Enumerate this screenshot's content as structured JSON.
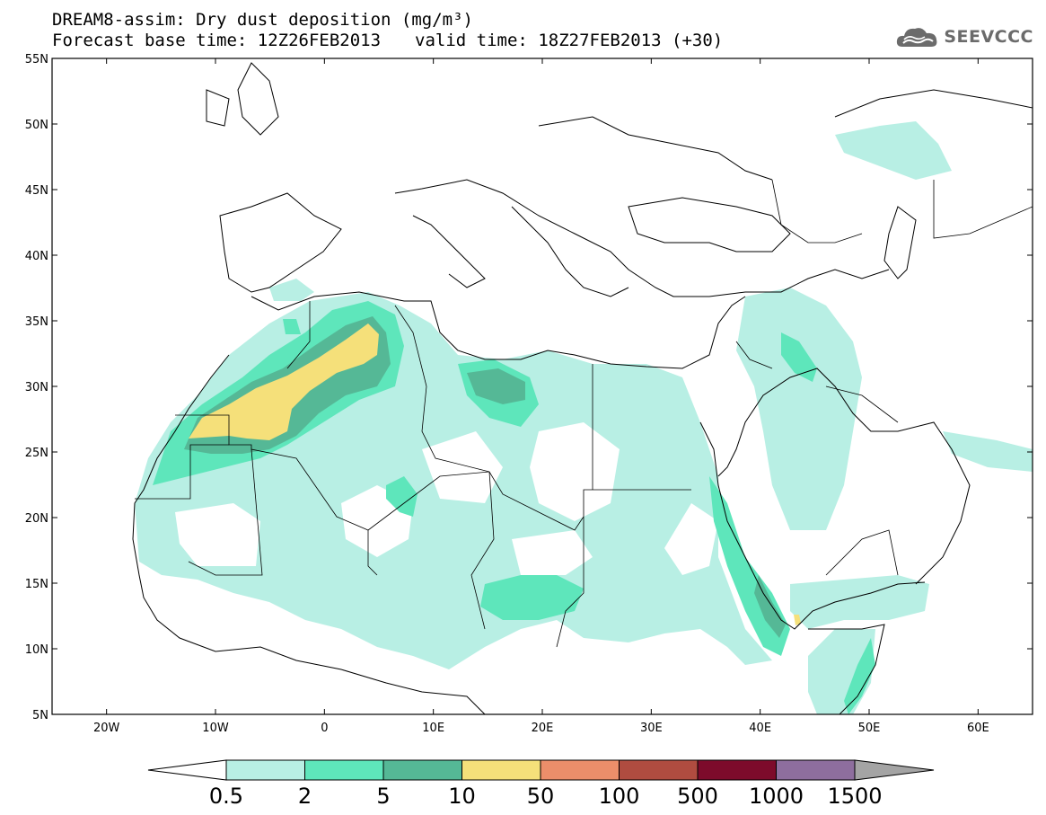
{
  "header": {
    "title": "DREAM8-assim: Dry dust deposition (mg/m³)",
    "base_time": "Forecast base time: 12Z26FEB2013",
    "valid_time": "valid time: 18Z27FEB2013 (+30)"
  },
  "logo": {
    "text": "SEEVCCC",
    "icon": "cloud-icon"
  },
  "map": {
    "lon_range": [
      -25,
      65
    ],
    "lat_range": [
      5,
      55
    ],
    "lat_ticks": [
      "55N",
      "50N",
      "45N",
      "40N",
      "35N",
      "30N",
      "25N",
      "20N",
      "15N",
      "10N",
      "5N"
    ],
    "lon_ticks": [
      "20W",
      "10W",
      "0",
      "10E",
      "20E",
      "30E",
      "40E",
      "50E",
      "60E"
    ]
  },
  "colorbar": {
    "levels": [
      "0.5",
      "2",
      "5",
      "10",
      "50",
      "100",
      "500",
      "1000",
      "1500"
    ],
    "colors": [
      "#ffffff",
      "#b8efe4",
      "#5ee6bb",
      "#55b896",
      "#f5e07a",
      "#ec8e6a",
      "#b04c40",
      "#7d0b2b",
      "#8e6e9e",
      "#a4a4a4"
    ]
  }
}
